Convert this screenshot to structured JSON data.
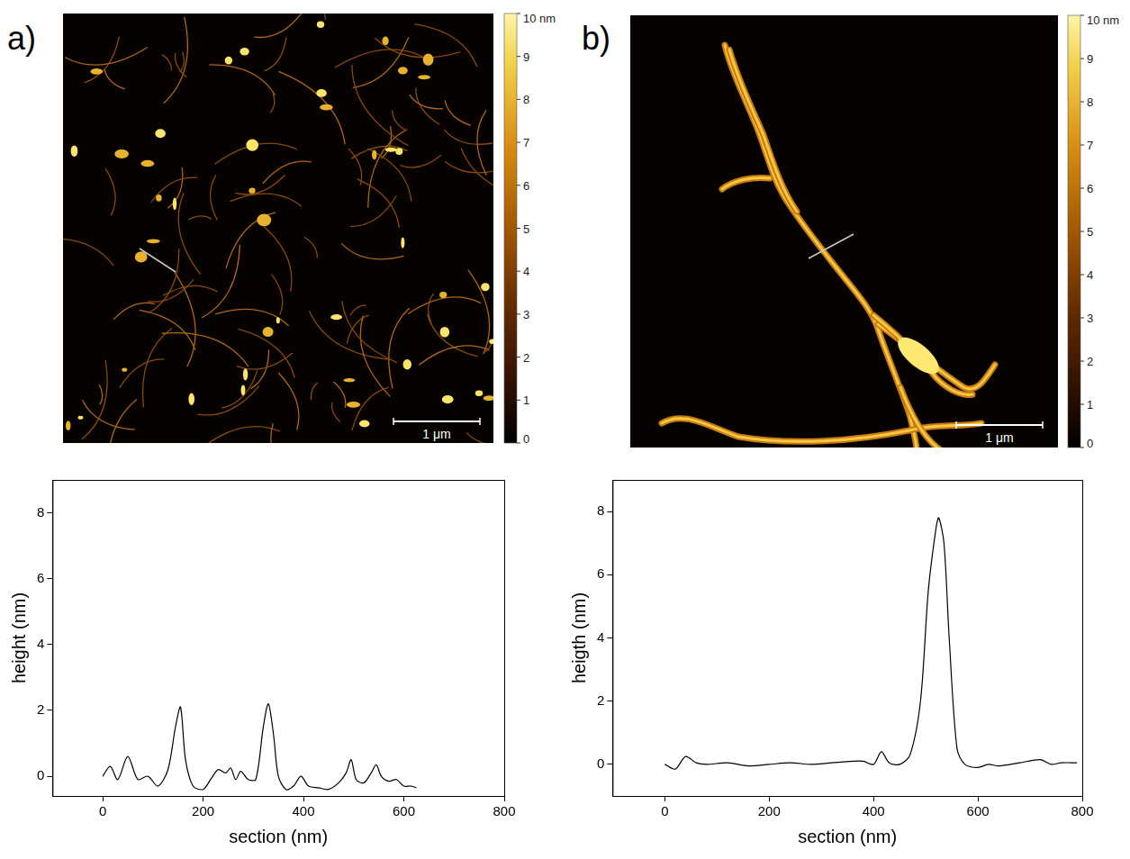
{
  "panels": [
    {
      "label": "a)",
      "scale_bar": "1 μm",
      "colorbar": {
        "range": [
          0,
          10
        ],
        "ticks": [
          {
            "value": 10,
            "label": "10 nm"
          },
          9,
          8,
          7,
          6,
          5,
          4,
          3,
          2,
          1,
          0
        ]
      }
    },
    {
      "label": "b)",
      "scale_bar": "1 μm",
      "colorbar": {
        "range": [
          0,
          10
        ],
        "ticks": [
          {
            "value": 10,
            "label": "10 nm"
          },
          9,
          8,
          7,
          6,
          5,
          4,
          3,
          2,
          1,
          0
        ]
      }
    }
  ],
  "chart_data": [
    {
      "type": "line",
      "x_label": "section (nm)",
      "y_label": "height (nm)",
      "x": [
        0,
        15,
        30,
        50,
        70,
        90,
        110,
        130,
        145,
        155,
        165,
        180,
        200,
        215,
        230,
        245,
        255,
        265,
        275,
        290,
        305,
        320,
        330,
        340,
        350,
        365,
        380,
        395,
        410,
        430,
        450,
        470,
        485,
        495,
        505,
        520,
        535,
        545,
        555,
        570,
        585,
        600,
        615,
        625
      ],
      "values": [
        0,
        0.3,
        -0.1,
        0.6,
        -0.1,
        0,
        -0.3,
        0.2,
        1.5,
        2.1,
        0.5,
        -0.3,
        -0.4,
        -0.1,
        0.2,
        0.1,
        0.25,
        -0.1,
        0.15,
        -0.1,
        -0.1,
        1.5,
        2.2,
        1.3,
        0,
        -0.4,
        -0.3,
        0,
        -0.3,
        -0.35,
        -0.4,
        -0.2,
        0.1,
        0.5,
        -0.1,
        -0.2,
        0.1,
        0.35,
        0,
        -0.15,
        -0.1,
        -0.3,
        -0.3,
        -0.35
      ],
      "color": "#000000",
      "xlim": [
        -100,
        800
      ],
      "xticks": [
        0,
        200,
        400,
        600,
        800
      ],
      "ylim": [
        -0.6,
        9
      ],
      "yticks": [
        0,
        2,
        4,
        6,
        8
      ],
      "grid": false
    },
    {
      "type": "line",
      "x_label": "section (nm)",
      "y_label": "heigth (nm)",
      "x": [
        0,
        20,
        40,
        60,
        80,
        120,
        160,
        200,
        240,
        280,
        320,
        360,
        380,
        400,
        415,
        430,
        450,
        470,
        490,
        505,
        520,
        525,
        535,
        545,
        560,
        575,
        600,
        620,
        640,
        680,
        720,
        740,
        760,
        790
      ],
      "values": [
        0,
        -0.15,
        0.25,
        0.05,
        0,
        0.05,
        -0.05,
        0,
        0.05,
        0,
        0.05,
        0.1,
        0.1,
        0,
        0.4,
        0.05,
        0,
        0.3,
        2,
        5.5,
        7.5,
        7.8,
        7,
        4,
        0.5,
        0,
        -0.1,
        0,
        -0.05,
        0.05,
        0.15,
        0,
        0.05,
        0.05
      ],
      "color": "#000000",
      "xlim": [
        -100,
        800
      ],
      "xticks": [
        0,
        200,
        400,
        600,
        800
      ],
      "ylim": [
        -1,
        9
      ],
      "yticks": [
        0,
        2,
        4,
        6,
        8
      ],
      "grid": false
    }
  ]
}
